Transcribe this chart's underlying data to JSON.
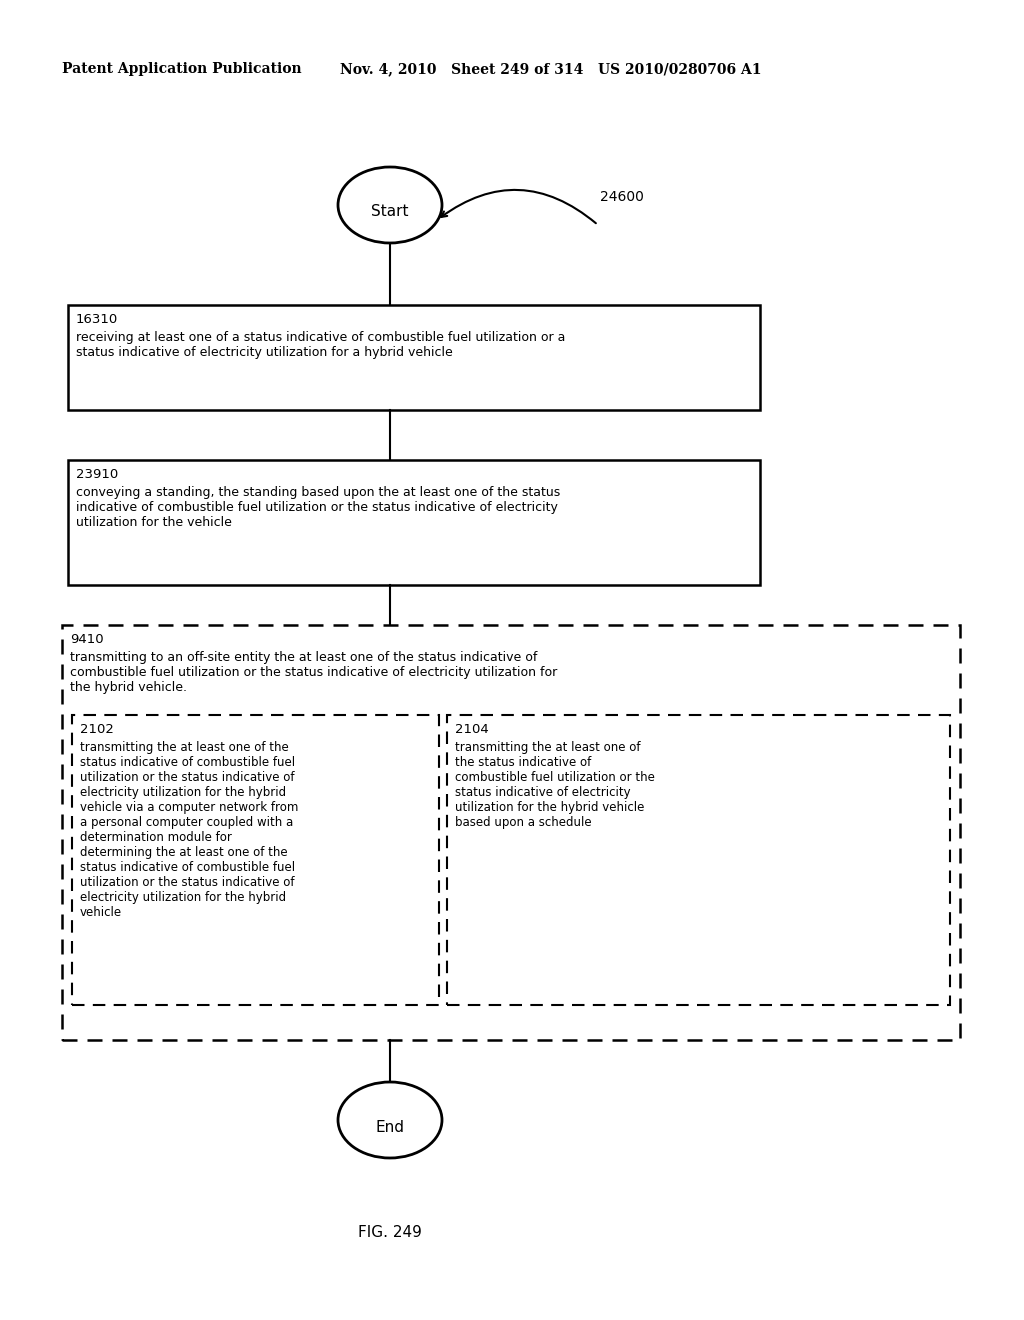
{
  "header_left": "Patent Application Publication",
  "header_mid": "Nov. 4, 2010   Sheet 249 of 314   US 2010/0280706 A1",
  "fig_label": "FIG. 249",
  "diagram_label": "24600",
  "start_label": "Start",
  "end_label": "End",
  "box1_id": "16310",
  "box1_text": "receiving at least one of a status indicative of combustible fuel utilization or a\nstatus indicative of electricity utilization for a hybrid vehicle",
  "box2_id": "23910",
  "box2_text": "conveying a standing, the standing based upon the at least one of the status\nindicative of combustible fuel utilization or the status indicative of electricity\nutilization for the vehicle",
  "outer_dashed_id": "9410",
  "outer_dashed_text": "transmitting to an off-site entity the at least one of the status indicative of\ncombustible fuel utilization or the status indicative of electricity utilization for\nthe hybrid vehicle.",
  "inner_left_id": "2102",
  "inner_left_text": "transmitting the at least one of the\nstatus indicative of combustible fuel\nutilization or the status indicative of\nelectricity utilization for the hybrid\nvehicle via a computer network from\na personal computer coupled with a\ndetermination module for\ndetermining the at least one of the\nstatus indicative of combustible fuel\nutilization or the status indicative of\nelectricity utilization for the hybrid\nvehicle",
  "inner_right_id": "2104",
  "inner_right_text": "transmitting the at least one of\nthe status indicative of\ncombustible fuel utilization or the\nstatus indicative of electricity\nutilization for the hybrid vehicle\nbased upon a schedule",
  "bg_color": "#ffffff",
  "text_color": "#000000"
}
